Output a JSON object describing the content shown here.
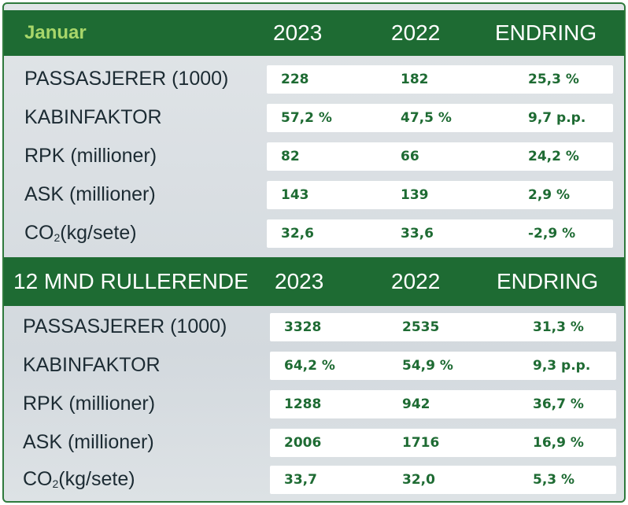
{
  "monthly": {
    "header": {
      "period": "Januar",
      "col_current": "2023",
      "col_previous": "2022",
      "col_change": "ENDRING"
    },
    "rows": [
      {
        "label": "PASSASJERER (1000)",
        "current": "228",
        "previous": "182",
        "change": "25,3 %"
      },
      {
        "label": "KABINFAKTOR",
        "current": "57,2  %",
        "previous": "47,5 %",
        "change": "9,7 p.p."
      },
      {
        "label": "RPK (millioner)",
        "current": "82",
        "previous": "66",
        "change": "24,2 %"
      },
      {
        "label": "ASK (millioner)",
        "current": "143",
        "previous": "139",
        "change": "2,9 %"
      },
      {
        "label_main": "CO",
        "label_sub": "2",
        "label_rest": " (kg/sete)",
        "current": "32,6",
        "previous": "33,6",
        "change": "-2,9 %"
      }
    ]
  },
  "rolling": {
    "header": {
      "period": "12 MND RULLERENDE",
      "col_current": "2023",
      "col_previous": "2022",
      "col_change": "ENDRING"
    },
    "rows": [
      {
        "label": "PASSASJERER (1000)",
        "current": "3328",
        "previous": "2535",
        "change": "31,3 %"
      },
      {
        "label": "KABINFAKTOR",
        "current": "64,2 %",
        "previous": "54,9 %",
        "change": "9,3 p.p."
      },
      {
        "label": "RPK (millioner)",
        "current": "1288",
        "previous": "942",
        "change": "36,7 %"
      },
      {
        "label": "ASK (millioner)",
        "current": "2006",
        "previous": "1716",
        "change": "16,9 %"
      },
      {
        "label_main": "CO",
        "label_sub": "2",
        "label_rest": " (kg/sete)",
        "current": "33,7",
        "previous": "32,0",
        "change": "5,3  %"
      }
    ]
  },
  "colors": {
    "header_green": "#1e6b33",
    "accent_green": "#a8d66a",
    "value_green": "#1e6b33"
  }
}
